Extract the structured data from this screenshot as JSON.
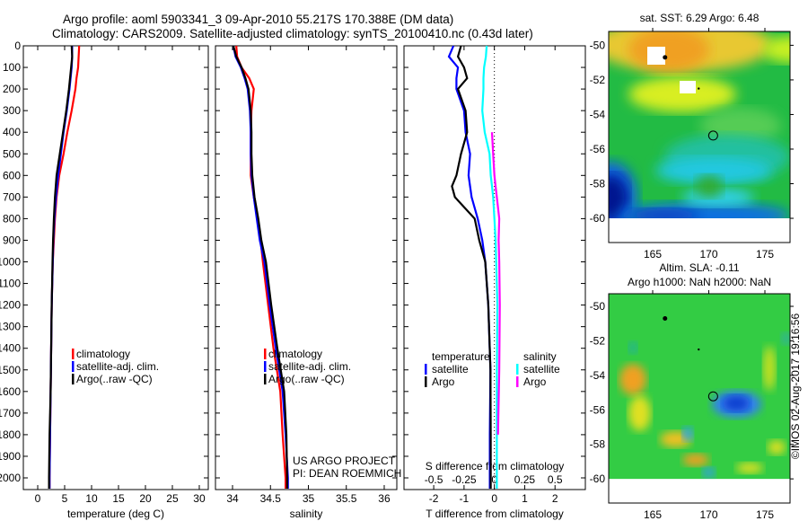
{
  "title": {
    "line1": "Argo profile: aoml 5903341_3 09-Apr-2010 55.217S 170.388E (DM data)",
    "line2": "Climatology: CARS2009. Satellite-adjusted climatology: synTS_20100410.nc (0.43d later)"
  },
  "colors": {
    "climatology": "#ff0000",
    "satellite": "#0000ff",
    "argo": "#000000",
    "sal_satellite": "#00ffff",
    "sal_argo": "#ff00ff"
  },
  "chart_data": [
    {
      "type": "line",
      "id": "temperature",
      "xlabel": "temperature (deg C)",
      "ylabel": "",
      "xlim": [
        -2.67,
        31.67
      ],
      "ylim": [
        2054,
        0
      ],
      "xticks": [
        "0",
        "5",
        "10",
        "15",
        "20",
        "25",
        "30"
      ],
      "xtick_values": [
        0,
        5,
        10,
        15,
        20,
        25,
        30
      ],
      "yticks": [
        "0",
        "100",
        "200",
        "300",
        "400",
        "500",
        "600",
        "700",
        "800",
        "900",
        "1000",
        "1100",
        "1200",
        "1300",
        "1400",
        "1500",
        "1600",
        "1700",
        "1800",
        "1900",
        "2000"
      ],
      "ytick_values": [
        0,
        100,
        200,
        300,
        400,
        500,
        600,
        700,
        800,
        900,
        1000,
        1100,
        1200,
        1300,
        1400,
        1500,
        1600,
        1700,
        1800,
        1900,
        2000
      ],
      "depth": [
        0,
        50,
        100,
        150,
        200,
        300,
        400,
        500,
        600,
        700,
        800,
        900,
        1000,
        1200,
        1400,
        1600,
        1800,
        2000,
        2050
      ],
      "legend": [
        "climatology",
        "satellite-adj. clim.",
        "Argo(..raw -QC)"
      ],
      "series": [
        {
          "name": "climatology",
          "color_key": "climatology",
          "values": [
            7.7,
            7.6,
            7.5,
            7.2,
            7.0,
            6.3,
            5.5,
            4.8,
            4.0,
            3.5,
            3.2,
            3.0,
            2.8,
            2.6,
            2.5,
            2.4,
            2.3,
            2.2,
            2.2
          ]
        },
        {
          "name": "satellite-adj. clim.",
          "color_key": "satellite",
          "values": [
            6.4,
            6.4,
            6.3,
            6.1,
            5.9,
            5.4,
            4.8,
            4.3,
            3.8,
            3.4,
            3.1,
            2.9,
            2.8,
            2.6,
            2.5,
            2.4,
            2.3,
            2.2,
            2.2
          ]
        },
        {
          "name": "Argo(..raw -QC)",
          "color_key": "argo",
          "values": [
            6.3,
            6.4,
            6.2,
            6.0,
            5.8,
            5.3,
            4.7,
            4.1,
            3.5,
            3.2,
            3.0,
            2.85,
            2.75,
            2.6,
            2.5,
            2.4,
            2.2,
            2.1,
            2.1
          ]
        }
      ]
    },
    {
      "type": "line",
      "id": "salinity",
      "xlabel": "salinity",
      "xlim": [
        33.775,
        36.166
      ],
      "ylim": [
        2054,
        0
      ],
      "xticks": [
        "34",
        "34.5",
        "35",
        "35.5",
        "36"
      ],
      "xtick_values": [
        34,
        34.5,
        35,
        35.5,
        36
      ],
      "depth": [
        0,
        50,
        100,
        150,
        200,
        300,
        400,
        500,
        600,
        700,
        800,
        900,
        1000,
        1200,
        1400,
        1600,
        1800,
        2000,
        2050
      ],
      "legend": [
        "climatology",
        "satellite-adj. clim.",
        "Argo(..raw -QC)"
      ],
      "credits": [
        "US ARGO PROJECT",
        "PI: DEAN ROEMMICH"
      ],
      "series": [
        {
          "name": "climatology",
          "color_key": "climatology",
          "values": [
            34.05,
            34.06,
            34.12,
            34.22,
            34.28,
            34.25,
            34.24,
            34.24,
            34.24,
            34.28,
            34.33,
            34.37,
            34.4,
            34.47,
            34.54,
            34.63,
            34.66,
            34.7,
            34.7
          ]
        },
        {
          "name": "satellite-adj. clim.",
          "color_key": "satellite",
          "values": [
            34.01,
            34.04,
            34.11,
            34.16,
            34.2,
            34.23,
            34.24,
            34.24,
            34.25,
            34.28,
            34.32,
            34.36,
            34.42,
            34.49,
            34.57,
            34.66,
            34.7,
            34.73,
            34.73
          ]
        },
        {
          "name": "Argo(..raw -QC)",
          "color_key": "argo",
          "values": [
            34.01,
            34.05,
            34.12,
            34.17,
            34.21,
            34.24,
            34.25,
            34.25,
            34.26,
            34.29,
            34.34,
            34.38,
            34.44,
            34.51,
            34.59,
            34.68,
            34.71,
            34.72,
            34.72
          ]
        }
      ]
    },
    {
      "type": "line",
      "id": "difference",
      "xlabel": "T difference from climatology",
      "x2label": "S difference from climatology",
      "xlim": [
        -2.98,
        3.0
      ],
      "s_scale": 0.25,
      "ylim": [
        2054,
        0
      ],
      "xticks": [
        "-2",
        "-1",
        "0",
        "1",
        "2"
      ],
      "xtick_values": [
        -2,
        -1,
        0,
        1,
        2
      ],
      "x2ticks": [
        "-0.5",
        "-0.25",
        "0",
        "0.25",
        "0.5"
      ],
      "x2tick_values": [
        -0.5,
        -0.25,
        0,
        0.25,
        0.5
      ],
      "legend_temperature": {
        "title": "temperature",
        "items": [
          "satellite",
          "Argo"
        ]
      },
      "legend_salinity": {
        "title": "salinity",
        "items": [
          "satellite",
          "Argo"
        ]
      },
      "depth": [
        0,
        50,
        100,
        150,
        200,
        300,
        400,
        500,
        600,
        650,
        700,
        800,
        900,
        1000,
        1200,
        1500,
        1800,
        2000,
        2050
      ],
      "series": [
        {
          "name": "temperature satellite",
          "color_key": "satellite",
          "unit": "T",
          "values": [
            -1.35,
            -1.5,
            -1.2,
            -1.25,
            -1.25,
            -1.0,
            -0.95,
            -0.8,
            -0.85,
            -0.8,
            -0.75,
            -0.55,
            -0.4,
            -0.3,
            -0.2,
            -0.13,
            -0.15,
            -0.15,
            -0.15
          ]
        },
        {
          "name": "temperature Argo",
          "color_key": "argo",
          "unit": "T",
          "values": [
            -1.1,
            -1.2,
            -1.0,
            -0.9,
            -1.2,
            -0.95,
            -0.9,
            -1.1,
            -1.25,
            -1.4,
            -1.3,
            -0.65,
            -0.5,
            -0.3,
            -0.2,
            -0.13,
            -0.12,
            -0.12,
            -0.12
          ]
        },
        {
          "name": "salinity satellite",
          "color_key": "sal_satellite",
          "unit": "S",
          "values": [
            -0.063,
            -0.07,
            -0.085,
            -0.09,
            -0.09,
            -0.1,
            -0.08,
            -0.04,
            -0.03,
            -0.02,
            -0.01,
            0.0,
            0.01,
            0.015,
            0.025,
            0.02,
            0.02,
            0.02,
            0.02
          ]
        },
        {
          "name": "salinity Argo",
          "color_key": "sal_argo",
          "unit": "S",
          "values": [
            null,
            null,
            null,
            null,
            null,
            null,
            -0.02,
            -0.01,
            0.0,
            0.01,
            0.02,
            0.04,
            0.035,
            0.04,
            0.045,
            0.04,
            0.03,
            null,
            null
          ]
        }
      ]
    }
  ],
  "maps": [
    {
      "id": "sst",
      "title_lines": [
        "sat. SST: 6.29 Argo: 6.48"
      ],
      "lat_ticks": [
        "-50",
        "-52",
        "-54",
        "-56",
        "-58",
        "-60"
      ],
      "lat_values": [
        -50,
        -52,
        -54,
        -56,
        -58,
        -60
      ],
      "lon_ticks": [
        "165",
        "170",
        "175"
      ],
      "lon_values": [
        165,
        170,
        175
      ],
      "profile_lon": 170.388,
      "profile_lat": -55.217
    },
    {
      "id": "sla",
      "title_lines": [
        "Altim. SLA: -0.11",
        "Argo h1000: NaN h2000: NaN"
      ],
      "lat_ticks": [
        "-50",
        "-52",
        "-54",
        "-56",
        "-58",
        "-60"
      ],
      "lat_values": [
        -50,
        -52,
        -54,
        -56,
        -58,
        -60
      ],
      "lon_ticks": [
        "165",
        "170",
        "175"
      ],
      "lon_values": [
        165,
        170,
        175
      ],
      "profile_lon": 170.388,
      "profile_lat": -55.217
    }
  ],
  "footer": {
    "stamp": "©IMOS 02-Aug-2017 19:16:56"
  }
}
